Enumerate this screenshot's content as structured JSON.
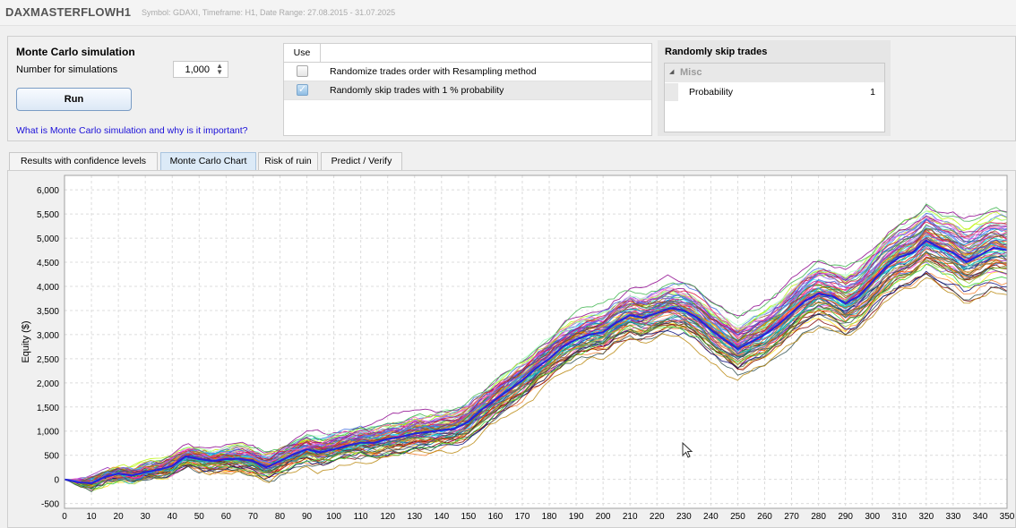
{
  "header": {
    "app_name": "DAXMASTERFLOWH1",
    "meta": "Symbol: GDAXI, Timeframe: H1, Date Range: 27.08.2015 - 31.07.2025"
  },
  "monte_carlo": {
    "title": "Monte Carlo simulation",
    "simulations_label": "Number for simulations",
    "simulations_value": "1,000",
    "run_label": "Run",
    "help_link": "What is Monte Carlo simulation and why is it important?"
  },
  "options_table": {
    "use_header": "Use",
    "rows": [
      {
        "label": "Randomize trades order with Resampling method",
        "checked": false
      },
      {
        "label": "Randomly skip trades with 1 % probability",
        "checked": true
      }
    ]
  },
  "skip_panel": {
    "title": "Randomly skip trades",
    "category": "Misc",
    "property_name": "Probability",
    "property_value": "1"
  },
  "tabs": [
    {
      "label": "Results with confidence levels",
      "active": false
    },
    {
      "label": "Monte Carlo Chart",
      "active": true
    },
    {
      "label": "Risk of ruin",
      "active": false
    },
    {
      "label": "Predict / Verify",
      "active": false
    }
  ],
  "chart_data": {
    "type": "line",
    "title": "",
    "xlabel": "",
    "ylabel": "Equity ($)",
    "xlim": [
      0,
      350
    ],
    "ylim": [
      -600,
      6300
    ],
    "x_ticks": [
      0,
      10,
      20,
      30,
      40,
      50,
      60,
      70,
      80,
      90,
      100,
      110,
      120,
      130,
      140,
      150,
      160,
      170,
      180,
      190,
      200,
      210,
      220,
      230,
      240,
      250,
      260,
      270,
      280,
      290,
      300,
      310,
      320,
      330,
      340,
      350
    ],
    "y_ticks": [
      -500,
      0,
      500,
      1000,
      1500,
      2000,
      2500,
      3000,
      3500,
      4000,
      4500,
      5000,
      5500,
      6000
    ],
    "y_tick_labels": [
      "-500",
      "0",
      "500",
      "1,000",
      "1,500",
      "2,000",
      "2,500",
      "3,000",
      "3,500",
      "4,000",
      "4,500",
      "5,000",
      "5,500",
      "6,000"
    ],
    "grid": true,
    "simulations_drawn": 1000,
    "median_path": {
      "x": [
        0,
        5,
        10,
        15,
        20,
        25,
        30,
        35,
        40,
        45,
        50,
        55,
        60,
        65,
        70,
        75,
        80,
        85,
        90,
        95,
        100,
        105,
        110,
        115,
        120,
        125,
        130,
        135,
        140,
        145,
        150,
        155,
        160,
        165,
        170,
        175,
        180,
        185,
        190,
        195,
        200,
        205,
        210,
        215,
        220,
        225,
        230,
        235,
        240,
        245,
        250,
        255,
        260,
        265,
        270,
        275,
        280,
        285,
        290,
        295,
        300,
        305,
        310,
        315,
        320,
        325,
        330,
        335,
        340,
        345,
        350
      ],
      "y": [
        0,
        -60,
        -80,
        50,
        120,
        80,
        150,
        200,
        280,
        480,
        420,
        380,
        420,
        430,
        380,
        250,
        380,
        520,
        620,
        560,
        620,
        700,
        760,
        760,
        840,
        880,
        950,
        980,
        1020,
        1050,
        1200,
        1450,
        1650,
        1850,
        2050,
        2300,
        2500,
        2750,
        2900,
        3000,
        3050,
        3250,
        3400,
        3350,
        3450,
        3550,
        3500,
        3350,
        3100,
        2900,
        2700,
        2850,
        3000,
        3200,
        3450,
        3700,
        3850,
        3800,
        3650,
        3800,
        4100,
        4400,
        4600,
        4700,
        4950,
        4800,
        4700,
        4500,
        4650,
        4800,
        4750
      ]
    },
    "band_spread": {
      "x": [
        0,
        50,
        100,
        150,
        200,
        250,
        300,
        350
      ],
      "y": [
        0,
        300,
        450,
        550,
        700,
        800,
        1000,
        1200
      ]
    }
  },
  "colors": {
    "accent": "#1a0fd8",
    "active_tab": "#dceaf7",
    "median_line": "#2222dd"
  }
}
